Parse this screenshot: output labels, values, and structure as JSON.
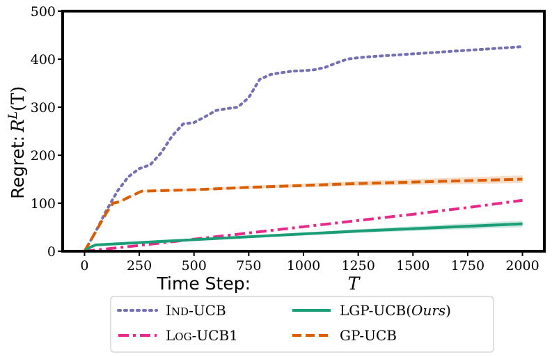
{
  "chart_data": {
    "type": "line",
    "title": "",
    "xlabel": "Time Step:",
    "xlabel_var": "T",
    "ylabel": "Regret:",
    "ylabel_var": "R",
    "ylabel_sup": "L",
    "ylabel_arg": "(T)",
    "xlim": [
      -100,
      2100
    ],
    "ylim": [
      0,
      500
    ],
    "xticks": [
      "0",
      "250",
      "500",
      "750",
      "1000",
      "1250",
      "1500",
      "1750",
      "2000"
    ],
    "xtick_values": [
      0,
      250,
      500,
      750,
      1000,
      1250,
      1500,
      1750,
      2000
    ],
    "yticks": [
      "0",
      "100",
      "200",
      "300",
      "400",
      "500"
    ],
    "ytick_values": [
      0,
      100,
      200,
      300,
      400,
      500
    ],
    "grid": false,
    "legend_position": "bottom-center",
    "series": [
      {
        "name": "IND-UCB",
        "label_small_caps": [
          "I",
          "ND",
          "-UCB"
        ],
        "color": "#7570b3",
        "style": "dotted",
        "x": [
          0,
          50,
          100,
          150,
          200,
          250,
          300,
          350,
          400,
          450,
          500,
          550,
          600,
          650,
          700,
          750,
          800,
          850,
          900,
          950,
          1000,
          1050,
          1100,
          1150,
          1200,
          1250,
          1300,
          1400,
          1500,
          1600,
          1700,
          1800,
          1900,
          2000
        ],
        "y": [
          0,
          40,
          85,
          125,
          155,
          172,
          180,
          205,
          240,
          265,
          268,
          280,
          293,
          297,
          300,
          320,
          358,
          368,
          372,
          375,
          376,
          378,
          383,
          392,
          400,
          403,
          405,
          408,
          411,
          414,
          417,
          420,
          423,
          426
        ]
      },
      {
        "name": "LOG-UCB1",
        "label_small_caps": [
          "L",
          "OG",
          "-UCB1"
        ],
        "color": "#e7298a",
        "style": "dashdot",
        "x": [
          0,
          250,
          500,
          750,
          1000,
          1250,
          1500,
          1750,
          2000
        ],
        "y": [
          0,
          12,
          25,
          38,
          51,
          64,
          77,
          91,
          106
        ]
      },
      {
        "name": "LGP-UCB(Ours)",
        "label_main": "LGP-UCB(",
        "label_ours": "Ours",
        "label_close": ")",
        "color": "#1b9e77",
        "style": "solid",
        "x": [
          0,
          25,
          50,
          250,
          500,
          750,
          1000,
          1250,
          1500,
          1750,
          2000
        ],
        "y": [
          0,
          8,
          13,
          18,
          24,
          30,
          36,
          42,
          47,
          52,
          57
        ],
        "band_lower": [
          0,
          8,
          12,
          17,
          22,
          28,
          33,
          38,
          42,
          46,
          50
        ],
        "band_upper": [
          0,
          8,
          14,
          19,
          26,
          32,
          39,
          46,
          52,
          58,
          64
        ]
      },
      {
        "name": "GP-UCB",
        "color": "#d95f02",
        "style": "dashed",
        "x": [
          0,
          50,
          100,
          130,
          160,
          200,
          260,
          500,
          750,
          1000,
          1250,
          1500,
          1750,
          2000
        ],
        "y": [
          0,
          40,
          80,
          100,
          103,
          112,
          125,
          128,
          133,
          137,
          141,
          144,
          147,
          150
        ],
        "band_lower": [
          0,
          40,
          79,
          99,
          102,
          111,
          124,
          126,
          130,
          133,
          136,
          138,
          140,
          142
        ],
        "band_upper": [
          0,
          40,
          81,
          101,
          104,
          113,
          126,
          130,
          136,
          141,
          146,
          150,
          154,
          158
        ]
      }
    ],
    "legend_order": [
      "IND-UCB",
      "LOG-UCB1",
      "LGP-UCB(Ours)",
      "GP-UCB"
    ]
  }
}
